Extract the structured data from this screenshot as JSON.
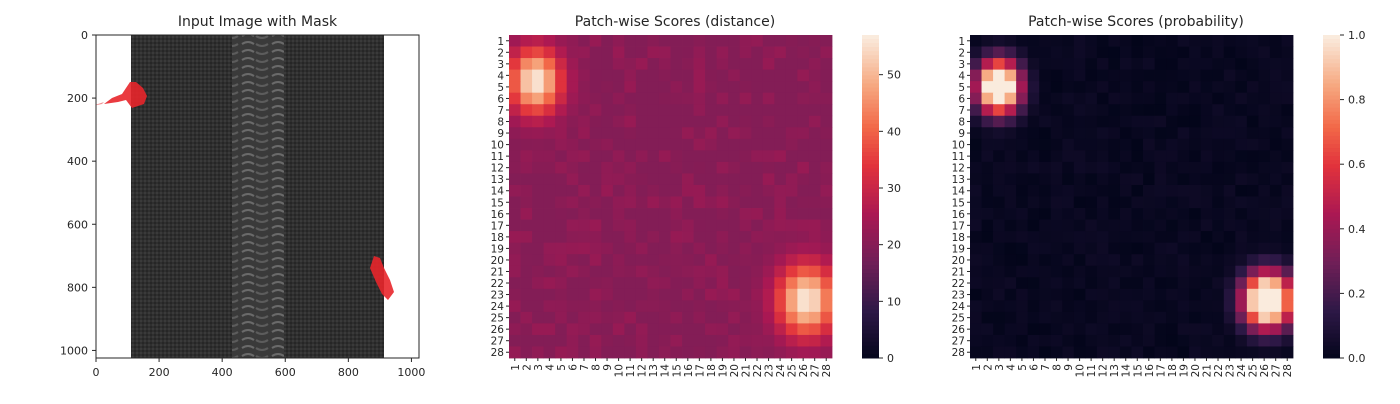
{
  "colors": {
    "mask": "#e8262b",
    "fabric": "#2e2e2e",
    "teeth": "#5a5a5a"
  },
  "chart_data": [
    {
      "type": "image",
      "title": "Input Image with Mask",
      "xticks": [
        "0",
        "200",
        "400",
        "600",
        "800",
        "1000"
      ],
      "yticks": [
        "0",
        "200",
        "400",
        "600",
        "800",
        "1000"
      ],
      "xlim": [
        0,
        1024
      ],
      "ylim": [
        1024,
        0
      ],
      "image_description_hidden": false
    },
    {
      "type": "heatmap",
      "title": "Patch-wise Scores (distance)",
      "rows": 28,
      "cols": 28,
      "row_labels": [
        "1",
        "2",
        "3",
        "4",
        "5",
        "6",
        "7",
        "8",
        "9",
        "10",
        "11",
        "12",
        "13",
        "14",
        "15",
        "16",
        "17",
        "18",
        "19",
        "20",
        "21",
        "22",
        "23",
        "24",
        "25",
        "26",
        "27",
        "28"
      ],
      "col_labels": [
        "1",
        "2",
        "3",
        "4",
        "5",
        "6",
        "7",
        "8",
        "9",
        "10",
        "11",
        "12",
        "13",
        "14",
        "15",
        "16",
        "17",
        "18",
        "19",
        "20",
        "21",
        "22",
        "23",
        "24",
        "25",
        "26",
        "27",
        "28"
      ],
      "colorbar_ticks": [
        "0",
        "10",
        "20",
        "30",
        "40",
        "50"
      ],
      "vmin": 0,
      "vmax": 57,
      "background_level": 20,
      "hotspots": [
        {
          "row": 4.5,
          "col": 2.8,
          "peak": 57,
          "sigma_r": 2.0,
          "sigma_c": 1.6
        },
        {
          "row": 23.5,
          "col": 26.3,
          "peak": 57,
          "sigma_r": 2.2,
          "sigma_c": 1.8
        }
      ]
    },
    {
      "type": "heatmap",
      "title": "Patch-wise Scores (probability)",
      "rows": 28,
      "cols": 28,
      "row_labels": [
        "1",
        "2",
        "3",
        "4",
        "5",
        "6",
        "7",
        "8",
        "9",
        "10",
        "11",
        "12",
        "13",
        "14",
        "15",
        "16",
        "17",
        "18",
        "19",
        "20",
        "21",
        "22",
        "23",
        "24",
        "25",
        "26",
        "27",
        "28"
      ],
      "col_labels": [
        "1",
        "2",
        "3",
        "4",
        "5",
        "6",
        "7",
        "8",
        "9",
        "10",
        "11",
        "12",
        "13",
        "14",
        "15",
        "16",
        "17",
        "18",
        "19",
        "20",
        "21",
        "22",
        "23",
        "24",
        "25",
        "26",
        "27",
        "28"
      ],
      "colorbar_ticks": [
        "0.0",
        "0.2",
        "0.4",
        "0.6",
        "0.8",
        "1.0"
      ],
      "vmin": 0,
      "vmax": 1,
      "hotspots": [
        {
          "row": 5.0,
          "col": 3.0,
          "peak": 1.0,
          "sigma_r": 1.6,
          "sigma_c": 1.3
        },
        {
          "row": 23.5,
          "col": 26.3,
          "peak": 1.0,
          "sigma_r": 1.7,
          "sigma_c": 1.5
        }
      ]
    }
  ]
}
